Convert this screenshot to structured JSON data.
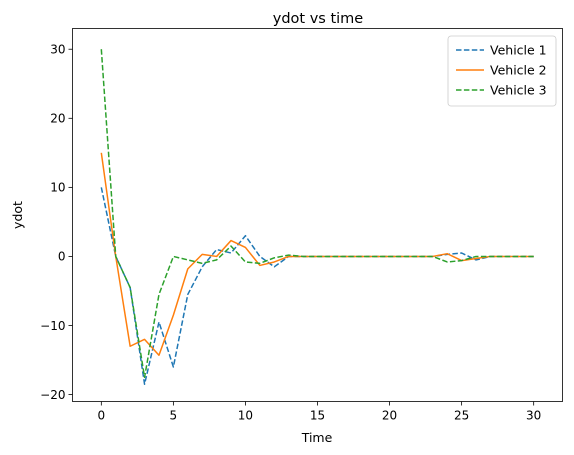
{
  "chart_data": {
    "type": "line",
    "title": "ydot vs time",
    "xlabel": "Time",
    "ylabel": "ydot",
    "xlim": [
      -2,
      32
    ],
    "ylim": [
      -21,
      33
    ],
    "xticks": [
      0,
      5,
      10,
      15,
      20,
      25,
      30
    ],
    "yticks": [
      -20,
      -10,
      0,
      10,
      20,
      30
    ],
    "grid": false,
    "legend_position": "top-right",
    "x": [
      0,
      1,
      2,
      3,
      4,
      5,
      6,
      7,
      8,
      9,
      10,
      11,
      12,
      13,
      14,
      15,
      16,
      17,
      18,
      19,
      20,
      21,
      22,
      23,
      24,
      25,
      26,
      27,
      28,
      29,
      30
    ],
    "series": [
      {
        "name": "Vehicle 1",
        "color": "#1f77b4",
        "dash": "dashed",
        "values": [
          10,
          0,
          -4.5,
          -18.5,
          -9.5,
          -16,
          -5.5,
          -1.5,
          1,
          0.5,
          3,
          0,
          -1.5,
          0,
          0,
          0,
          0,
          0,
          0,
          0,
          0,
          0,
          0,
          0,
          0.3,
          0.5,
          -0.5,
          0,
          0,
          0,
          0
        ]
      },
      {
        "name": "Vehicle 2",
        "color": "#ff7f0e",
        "dash": "solid",
        "values": [
          15,
          0,
          -13,
          -12,
          -14.3,
          -8.5,
          -1.8,
          0.3,
          0,
          2.3,
          1.3,
          -1.3,
          -0.8,
          0,
          0,
          0,
          0,
          0,
          0,
          0,
          0,
          0,
          0,
          0,
          0.4,
          -0.6,
          -0.3,
          0,
          0,
          0,
          0
        ]
      },
      {
        "name": "Vehicle 3",
        "color": "#2ca02c",
        "dash": "dashed",
        "values": [
          30,
          0,
          -4.5,
          -17.5,
          -5.5,
          0,
          -0.5,
          -1,
          -0.5,
          1.5,
          -0.8,
          -1,
          -0.2,
          0.2,
          0,
          0,
          0,
          0,
          0,
          0,
          0,
          0,
          0,
          0,
          -0.8,
          -0.6,
          0,
          0,
          0,
          0,
          0
        ]
      }
    ]
  }
}
